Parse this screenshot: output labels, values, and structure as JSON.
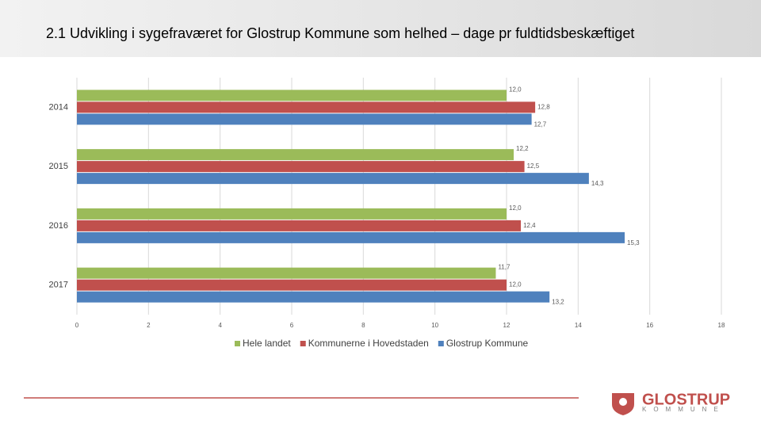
{
  "chart_data": {
    "type": "hbar",
    "title": "2.1 Udvikling i sygefraværet for Glostrup Kommune som helhed – dage pr fuldtidsbeskæftiget",
    "categories": [
      "2014",
      "2015",
      "2016",
      "2017"
    ],
    "series": [
      {
        "name": "Hele landet",
        "color": "#9bbb59",
        "values": [
          12.0,
          12.2,
          12.0,
          11.7
        ],
        "value_labels": [
          "12,0",
          "12,2",
          "12,0",
          "11,7"
        ]
      },
      {
        "name": "Kommunerne i Hovedstaden",
        "color": "#c0504d",
        "values": [
          12.8,
          12.5,
          12.4,
          12.0
        ],
        "value_labels": [
          "12,8",
          "12,5",
          "12,4",
          "12,0"
        ]
      },
      {
        "name": "Glostrup Kommune",
        "color": "#4f81bd",
        "values": [
          12.7,
          14.3,
          15.3,
          13.2
        ],
        "value_labels": [
          "12,7",
          "14,3",
          "15,3",
          "13,2"
        ]
      }
    ],
    "xlim": [
      0,
      18
    ],
    "xticks": [
      0,
      2,
      4,
      6,
      8,
      10,
      12,
      14,
      16,
      18
    ],
    "grid": true,
    "legend": "bottom"
  },
  "logo": {
    "name": "GLOSTRUP",
    "sub": "KOMMUNE"
  }
}
